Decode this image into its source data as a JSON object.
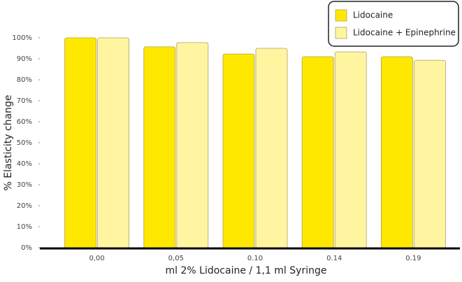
{
  "chart_data": {
    "type": "bar",
    "x_label": "ml 2% Lidocaine / 1,1 ml Syringe",
    "y_label": "% Elasticity change",
    "categories": [
      "0,00",
      "0,05",
      "0.10",
      "0.14",
      "0.19"
    ],
    "series": [
      {
        "name": "Lidocaine",
        "color": "#ffe800",
        "values": [
          100,
          95.7,
          92.3,
          91,
          91
        ]
      },
      {
        "name": "Lidocaine + Epinephrine",
        "color": "#fff5a0",
        "values": [
          100,
          97.7,
          95,
          93.3,
          89.3
        ]
      }
    ],
    "ylim": [
      0,
      100
    ],
    "yticks": [
      {
        "value": 0,
        "label": "0%"
      },
      {
        "value": 10,
        "label": "10%"
      },
      {
        "value": 20,
        "label": "20%"
      },
      {
        "value": 30,
        "label": "30%"
      },
      {
        "value": 40,
        "label": "40%"
      },
      {
        "value": 50,
        "label": "50%"
      },
      {
        "value": 60,
        "label": "60%"
      },
      {
        "value": 70,
        "label": "70%"
      },
      {
        "value": 80,
        "label": "80%"
      },
      {
        "value": 90,
        "label": "90%"
      },
      {
        "value": 100,
        "label": "100%"
      }
    ],
    "grid": false,
    "legend_position": "top-right"
  }
}
